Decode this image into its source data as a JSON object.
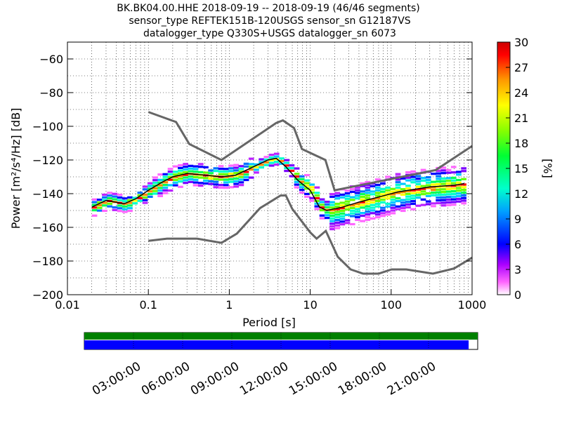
{
  "title_lines": [
    "BK.BK04.00.HHE   2018-09-19 -- 2018-09-19  (46/46 segments)",
    "sensor_type REFTEK151B-120USGS sensor_sn G12187VS",
    "datalogger_type Q330S+USGS datalogger_sn 6073"
  ],
  "colorbar": {
    "label": "[%]",
    "min": 0,
    "max": 30,
    "ticks": [
      "0",
      "3",
      "6",
      "9",
      "12",
      "15",
      "18",
      "21",
      "24",
      "27",
      "30"
    ]
  },
  "timeline": {
    "ticks": [
      "03:00:00",
      "06:00:00",
      "09:00:00",
      "12:00:00",
      "15:00:00",
      "18:00:00",
      "21:00:00"
    ],
    "coverage_fraction": 0.977,
    "colors": {
      "top": "#008000",
      "bottom": "#0000ff"
    }
  },
  "chart_data": {
    "type": "heatmap",
    "title": "BK.BK04.00.HHE   2018-09-19 -- 2018-09-19  (46/46 segments)",
    "xlabel": "Period [s]",
    "ylabel": "Power [m²/s⁴/Hz] [dB]",
    "xscale": "log",
    "xlim": [
      0.01,
      1000
    ],
    "ylim": [
      -200,
      -50
    ],
    "grid": true,
    "x_ticks": [
      "0.01",
      "0.1",
      "1",
      "10",
      "100",
      "1000"
    ],
    "y_ticks": [
      "−200",
      "−180",
      "−160",
      "−140",
      "−120",
      "−100",
      "−80",
      "−60"
    ],
    "nhnm": [
      [
        0.1,
        -91.5
      ],
      [
        0.22,
        -97.4
      ],
      [
        0.32,
        -110.5
      ],
      [
        0.8,
        -120
      ],
      [
        3.8,
        -98
      ],
      [
        4.6,
        -96.5
      ],
      [
        6.3,
        -101
      ],
      [
        7.9,
        -113.5
      ],
      [
        15.4,
        -120
      ],
      [
        20,
        -138
      ],
      [
        354.8,
        -126
      ],
      [
        10000,
        -80
      ]
    ],
    "nlnm": [
      [
        0.1,
        -168
      ],
      [
        0.17,
        -166.7
      ],
      [
        0.4,
        -166.7
      ],
      [
        0.8,
        -169.2
      ],
      [
        1.24,
        -163.7
      ],
      [
        2.4,
        -148.6
      ],
      [
        4.3,
        -141.1
      ],
      [
        5,
        -141.1
      ],
      [
        6,
        -149
      ],
      [
        10,
        -163
      ],
      [
        12,
        -166.7
      ],
      [
        15.6,
        -162.1
      ],
      [
        21.9,
        -177.5
      ],
      [
        31.6,
        -185
      ],
      [
        45,
        -187.5
      ],
      [
        70,
        -187.5
      ],
      [
        101,
        -185
      ],
      [
        154,
        -185
      ],
      [
        328,
        -187.5
      ],
      [
        600,
        -184.4
      ],
      [
        1000,
        -178
      ]
    ],
    "mode_curve": [
      [
        0.02,
        -148
      ],
      [
        0.03,
        -144
      ],
      [
        0.05,
        -146
      ],
      [
        0.07,
        -143
      ],
      [
        0.1,
        -138
      ],
      [
        0.15,
        -133
      ],
      [
        0.2,
        -130
      ],
      [
        0.3,
        -128
      ],
      [
        0.5,
        -129
      ],
      [
        0.8,
        -130
      ],
      [
        1.2,
        -129
      ],
      [
        2,
        -124
      ],
      [
        3,
        -120
      ],
      [
        3.8,
        -119
      ],
      [
        5,
        -124
      ],
      [
        7,
        -132
      ],
      [
        10,
        -138
      ],
      [
        13,
        -148
      ],
      [
        16,
        -150
      ],
      [
        25,
        -148
      ],
      [
        40,
        -145
      ],
      [
        70,
        -142
      ],
      [
        120,
        -139
      ],
      [
        300,
        -136
      ],
      [
        600,
        -135
      ],
      [
        800,
        -134
      ]
    ],
    "color_scale": "pqlx",
    "unit": "%"
  }
}
